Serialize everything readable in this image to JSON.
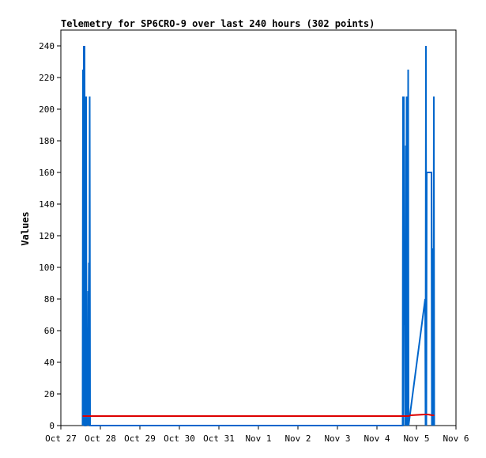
{
  "chart_data": {
    "type": "line",
    "title": "Telemetry for SP6CRO-9 over last 240 hours (302 points)",
    "ylabel": "Values",
    "xlabel": "",
    "ylim": [
      0,
      250
    ],
    "xlim": [
      0,
      10
    ],
    "yticks": [
      0,
      20,
      40,
      60,
      80,
      100,
      120,
      140,
      160,
      180,
      200,
      220,
      240
    ],
    "xticks": [
      {
        "x": 0,
        "label": "Oct 27"
      },
      {
        "x": 1,
        "label": "Oct 28"
      },
      {
        "x": 2,
        "label": "Oct 29"
      },
      {
        "x": 3,
        "label": "Oct 30"
      },
      {
        "x": 4,
        "label": "Oct 31"
      },
      {
        "x": 5,
        "label": "Nov 1"
      },
      {
        "x": 6,
        "label": "Nov 2"
      },
      {
        "x": 7,
        "label": "Nov 3"
      },
      {
        "x": 8,
        "label": "Nov 4"
      },
      {
        "x": 9,
        "label": "Nov 5"
      },
      {
        "x": 10,
        "label": "Nov 6"
      }
    ],
    "grid": false,
    "legend": "none",
    "series": [
      {
        "color": "#0066cc",
        "points": [
          [
            0.55,
            0
          ],
          [
            0.56,
            225
          ],
          [
            0.57,
            0
          ],
          [
            0.58,
            240
          ],
          [
            0.59,
            0
          ],
          [
            0.6,
            240
          ],
          [
            0.61,
            0
          ],
          [
            0.63,
            0
          ],
          [
            0.64,
            208
          ],
          [
            0.65,
            0
          ],
          [
            0.66,
            30
          ],
          [
            0.67,
            46
          ],
          [
            0.68,
            0
          ],
          [
            0.69,
            85
          ],
          [
            0.7,
            65
          ],
          [
            0.71,
            103
          ],
          [
            0.72,
            0
          ],
          [
            0.73,
            208
          ],
          [
            0.74,
            0
          ],
          [
            8.65,
            0
          ],
          [
            8.66,
            208
          ],
          [
            8.67,
            0
          ],
          [
            8.68,
            208
          ],
          [
            8.69,
            64
          ],
          [
            8.7,
            64
          ],
          [
            8.71,
            104
          ],
          [
            8.72,
            0
          ],
          [
            8.73,
            177
          ],
          [
            8.74,
            0
          ],
          [
            8.75,
            208
          ],
          [
            8.76,
            0
          ],
          [
            8.77,
            4
          ],
          [
            8.78,
            0
          ],
          [
            8.79,
            225
          ],
          [
            8.8,
            0
          ],
          [
            9.22,
            80
          ],
          [
            9.23,
            0
          ],
          [
            9.24,
            240
          ],
          [
            9.25,
            0
          ],
          [
            9.26,
            160
          ],
          [
            9.38,
            160
          ],
          [
            9.39,
            0
          ],
          [
            9.4,
            112
          ],
          [
            9.41,
            0
          ],
          [
            9.42,
            112
          ],
          [
            9.43,
            30
          ],
          [
            9.44,
            208
          ],
          [
            9.45,
            0
          ]
        ]
      },
      {
        "color": "#dd0000",
        "points": [
          [
            0.55,
            6
          ],
          [
            8.8,
            6
          ],
          [
            8.85,
            6.5
          ],
          [
            9.2,
            7
          ],
          [
            9.3,
            7
          ],
          [
            9.4,
            6.5
          ],
          [
            9.45,
            6.5
          ]
        ]
      }
    ]
  }
}
